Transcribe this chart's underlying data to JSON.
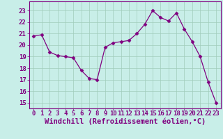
{
  "x": [
    0,
    1,
    2,
    3,
    4,
    5,
    6,
    7,
    8,
    9,
    10,
    11,
    12,
    13,
    14,
    15,
    16,
    17,
    18,
    19,
    20,
    21,
    22,
    23
  ],
  "y": [
    20.8,
    20.9,
    19.4,
    19.1,
    19.0,
    18.9,
    17.8,
    17.1,
    17.0,
    19.8,
    20.2,
    20.3,
    20.4,
    21.0,
    21.8,
    23.0,
    22.4,
    22.1,
    22.8,
    21.4,
    20.3,
    19.0,
    16.8,
    15.0
  ],
  "line_color": "#800080",
  "marker": "D",
  "marker_size": 2.5,
  "bg_color": "#c8eee8",
  "grid_color": "#a0ccbb",
  "xlabel": "Windchill (Refroidissement éolien,°C)",
  "tick_color": "#800080",
  "ylim": [
    14.5,
    23.8
  ],
  "yticks": [
    15,
    16,
    17,
    18,
    19,
    20,
    21,
    22,
    23
  ],
  "font_size": 6.5,
  "xlabel_font_size": 7.5,
  "line_width": 0.9,
  "spine_color": "#800080"
}
